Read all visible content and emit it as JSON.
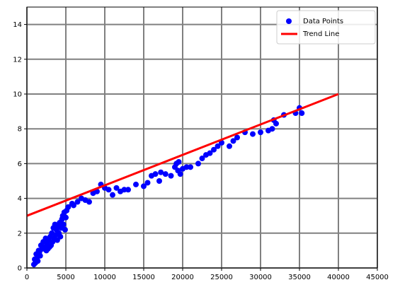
{
  "chart_data": {
    "type": "scatter",
    "title": "",
    "xlabel": "",
    "ylabel": "",
    "xlim": [
      0,
      45000
    ],
    "ylim": [
      0,
      15
    ],
    "xticks": [
      0,
      5000,
      10000,
      15000,
      20000,
      25000,
      30000,
      35000,
      40000,
      45000
    ],
    "xtick_labels": [
      "0",
      "5000",
      "10000",
      "15000",
      "20000",
      "25000",
      "30000",
      "35000",
      "40000",
      "45000"
    ],
    "yticks": [
      0,
      2,
      4,
      6,
      8,
      10,
      12,
      14
    ],
    "ytick_labels": [
      "0",
      "2",
      "4",
      "6",
      "8",
      "10",
      "12",
      "14"
    ],
    "grid": true,
    "grid_color": "#808080",
    "legend_position": "top-right",
    "series": [
      {
        "name": "Data Points",
        "kind": "scatter",
        "color": "#0000ff",
        "points": [
          [
            900,
            0.2
          ],
          [
            1000,
            0.5
          ],
          [
            1100,
            0.3
          ],
          [
            1200,
            0.8
          ],
          [
            1300,
            0.6
          ],
          [
            1400,
            0.4
          ],
          [
            1500,
            1.0
          ],
          [
            1600,
            0.9
          ],
          [
            1700,
            0.7
          ],
          [
            1800,
            1.3
          ],
          [
            2000,
            1.1
          ],
          [
            2100,
            1.5
          ],
          [
            2300,
            1.2
          ],
          [
            2400,
            1.7
          ],
          [
            2500,
            1.0
          ],
          [
            2600,
            1.4
          ],
          [
            2700,
            1.1
          ],
          [
            2800,
            1.6
          ],
          [
            2900,
            1.2
          ],
          [
            3000,
            1.8
          ],
          [
            3100,
            1.3
          ],
          [
            3200,
            2.0
          ],
          [
            3300,
            1.5
          ],
          [
            3400,
            2.3
          ],
          [
            3500,
            1.7
          ],
          [
            3600,
            2.5
          ],
          [
            3700,
            1.9
          ],
          [
            3800,
            2.2
          ],
          [
            3900,
            1.6
          ],
          [
            4000,
            2.4
          ],
          [
            4100,
            2.0
          ],
          [
            4200,
            2.6
          ],
          [
            4300,
            1.8
          ],
          [
            4400,
            2.3
          ],
          [
            4500,
            2.8
          ],
          [
            4600,
            3.0
          ],
          [
            4700,
            2.5
          ],
          [
            4800,
            3.2
          ],
          [
            4900,
            2.2
          ],
          [
            5000,
            2.9
          ],
          [
            5100,
            3.3
          ],
          [
            5300,
            3.5
          ],
          [
            5800,
            3.7
          ],
          [
            6000,
            3.6
          ],
          [
            6500,
            3.8
          ],
          [
            7000,
            4.0
          ],
          [
            7500,
            3.9
          ],
          [
            8000,
            3.8
          ],
          [
            8500,
            4.3
          ],
          [
            9000,
            4.4
          ],
          [
            9500,
            4.8
          ],
          [
            10000,
            4.6
          ],
          [
            10500,
            4.5
          ],
          [
            11000,
            4.2
          ],
          [
            11500,
            4.6
          ],
          [
            12000,
            4.4
          ],
          [
            12500,
            4.5
          ],
          [
            13000,
            4.5
          ],
          [
            14000,
            4.8
          ],
          [
            15000,
            4.7
          ],
          [
            15500,
            4.9
          ],
          [
            16000,
            5.3
          ],
          [
            16500,
            5.4
          ],
          [
            17000,
            5.0
          ],
          [
            17200,
            5.5
          ],
          [
            17800,
            5.4
          ],
          [
            18500,
            5.3
          ],
          [
            19000,
            5.8
          ],
          [
            19200,
            6.0
          ],
          [
            19400,
            5.6
          ],
          [
            19500,
            6.1
          ],
          [
            19700,
            5.4
          ],
          [
            20000,
            5.7
          ],
          [
            20500,
            5.8
          ],
          [
            21000,
            5.8
          ],
          [
            22000,
            6.0
          ],
          [
            22500,
            6.3
          ],
          [
            23000,
            6.5
          ],
          [
            23500,
            6.6
          ],
          [
            24000,
            6.8
          ],
          [
            24500,
            7.0
          ],
          [
            25000,
            7.2
          ],
          [
            26000,
            7.0
          ],
          [
            26500,
            7.3
          ],
          [
            27000,
            7.5
          ],
          [
            28000,
            7.8
          ],
          [
            29000,
            7.7
          ],
          [
            30000,
            7.8
          ],
          [
            31000,
            7.9
          ],
          [
            31500,
            8.0
          ],
          [
            31700,
            8.5
          ],
          [
            32000,
            8.3
          ],
          [
            33000,
            8.8
          ],
          [
            34500,
            8.9
          ],
          [
            35000,
            9.2
          ],
          [
            35300,
            8.9
          ]
        ]
      },
      {
        "name": "Trend Line",
        "kind": "line",
        "color": "#ff0000",
        "points": [
          [
            0,
            3.0
          ],
          [
            40000,
            10.0
          ]
        ]
      }
    ]
  }
}
